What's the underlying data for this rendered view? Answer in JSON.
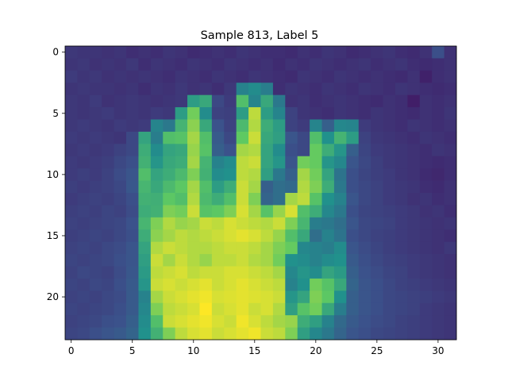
{
  "chart_data": {
    "type": "heatmap",
    "title": "Sample 813, Label 5",
    "xlabel": "",
    "ylabel": "",
    "colormap": "viridis",
    "grid": false,
    "legend": "none",
    "rows": 24,
    "cols": 32,
    "y_axis_direction": "top-to-bottom",
    "x_ticks": [
      0,
      5,
      10,
      15,
      20,
      25,
      30
    ],
    "y_ticks": [
      0,
      5,
      10,
      15,
      20
    ],
    "value_range": [
      0,
      1
    ],
    "values": [
      [
        0.17,
        0.16,
        0.16,
        0.15,
        0.16,
        0.14,
        0.15,
        0.14,
        0.16,
        0.15,
        0.13,
        0.14,
        0.15,
        0.14,
        0.16,
        0.15,
        0.14,
        0.14,
        0.13,
        0.15,
        0.14,
        0.16,
        0.15,
        0.13,
        0.14,
        0.15,
        0.16,
        0.14,
        0.13,
        0.15,
        0.24,
        0.15
      ],
      [
        0.16,
        0.17,
        0.15,
        0.16,
        0.15,
        0.17,
        0.14,
        0.16,
        0.15,
        0.14,
        0.16,
        0.15,
        0.14,
        0.16,
        0.15,
        0.14,
        0.15,
        0.13,
        0.15,
        0.14,
        0.16,
        0.15,
        0.14,
        0.15,
        0.16,
        0.14,
        0.15,
        0.16,
        0.14,
        0.13,
        0.14,
        0.15
      ],
      [
        0.18,
        0.16,
        0.17,
        0.15,
        0.16,
        0.15,
        0.16,
        0.15,
        0.14,
        0.16,
        0.15,
        0.14,
        0.16,
        0.15,
        0.14,
        0.16,
        0.15,
        0.14,
        0.13,
        0.16,
        0.15,
        0.14,
        0.16,
        0.15,
        0.14,
        0.15,
        0.14,
        0.13,
        0.15,
        0.1,
        0.14,
        0.15
      ],
      [
        0.16,
        0.17,
        0.16,
        0.16,
        0.15,
        0.16,
        0.14,
        0.16,
        0.15,
        0.17,
        0.15,
        0.16,
        0.14,
        0.17,
        0.44,
        0.48,
        0.42,
        0.14,
        0.16,
        0.15,
        0.14,
        0.16,
        0.15,
        0.14,
        0.16,
        0.15,
        0.14,
        0.16,
        0.15,
        0.14,
        0.13,
        0.14
      ],
      [
        0.17,
        0.16,
        0.18,
        0.15,
        0.16,
        0.17,
        0.16,
        0.15,
        0.16,
        0.17,
        0.55,
        0.6,
        0.22,
        0.18,
        0.7,
        0.45,
        0.6,
        0.4,
        0.15,
        0.16,
        0.14,
        0.15,
        0.16,
        0.15,
        0.14,
        0.13,
        0.15,
        0.14,
        0.09,
        0.15,
        0.14,
        0.15
      ],
      [
        0.17,
        0.16,
        0.17,
        0.18,
        0.16,
        0.17,
        0.16,
        0.18,
        0.17,
        0.55,
        0.78,
        0.48,
        0.2,
        0.19,
        0.55,
        0.9,
        0.55,
        0.45,
        0.2,
        0.16,
        0.15,
        0.14,
        0.16,
        0.15,
        0.14,
        0.16,
        0.15,
        0.14,
        0.13,
        0.15,
        0.14,
        0.16
      ],
      [
        0.17,
        0.18,
        0.17,
        0.16,
        0.18,
        0.17,
        0.18,
        0.45,
        0.4,
        0.65,
        0.82,
        0.6,
        0.25,
        0.2,
        0.68,
        0.88,
        0.62,
        0.55,
        0.2,
        0.18,
        0.45,
        0.3,
        0.46,
        0.45,
        0.18,
        0.16,
        0.15,
        0.14,
        0.16,
        0.15,
        0.14,
        0.15
      ],
      [
        0.18,
        0.17,
        0.18,
        0.17,
        0.16,
        0.22,
        0.58,
        0.42,
        0.7,
        0.72,
        0.86,
        0.7,
        0.28,
        0.22,
        0.75,
        0.92,
        0.6,
        0.56,
        0.26,
        0.22,
        0.7,
        0.5,
        0.65,
        0.55,
        0.2,
        0.17,
        0.16,
        0.15,
        0.14,
        0.16,
        0.15,
        0.14
      ],
      [
        0.17,
        0.18,
        0.17,
        0.18,
        0.2,
        0.22,
        0.62,
        0.48,
        0.58,
        0.6,
        0.84,
        0.72,
        0.3,
        0.25,
        0.86,
        0.88,
        0.58,
        0.48,
        0.24,
        0.22,
        0.76,
        0.62,
        0.52,
        0.3,
        0.21,
        0.18,
        0.17,
        0.16,
        0.15,
        0.14,
        0.16,
        0.15
      ],
      [
        0.18,
        0.17,
        0.18,
        0.19,
        0.22,
        0.24,
        0.64,
        0.52,
        0.6,
        0.62,
        0.86,
        0.65,
        0.44,
        0.48,
        0.9,
        0.92,
        0.58,
        0.52,
        0.26,
        0.78,
        0.76,
        0.52,
        0.46,
        0.26,
        0.22,
        0.19,
        0.17,
        0.16,
        0.15,
        0.14,
        0.13,
        0.14
      ],
      [
        0.18,
        0.19,
        0.18,
        0.2,
        0.23,
        0.26,
        0.7,
        0.58,
        0.62,
        0.68,
        0.8,
        0.64,
        0.48,
        0.5,
        0.9,
        0.88,
        0.56,
        0.4,
        0.3,
        0.86,
        0.78,
        0.58,
        0.38,
        0.24,
        0.21,
        0.19,
        0.18,
        0.16,
        0.15,
        0.13,
        0.12,
        0.14
      ],
      [
        0.19,
        0.18,
        0.19,
        0.2,
        0.22,
        0.27,
        0.66,
        0.6,
        0.68,
        0.74,
        0.86,
        0.7,
        0.55,
        0.62,
        0.92,
        0.86,
        0.3,
        0.36,
        0.34,
        0.88,
        0.8,
        0.62,
        0.4,
        0.24,
        0.22,
        0.2,
        0.18,
        0.17,
        0.16,
        0.14,
        0.13,
        0.15
      ],
      [
        0.18,
        0.19,
        0.2,
        0.19,
        0.21,
        0.24,
        0.64,
        0.63,
        0.74,
        0.7,
        0.88,
        0.68,
        0.62,
        0.7,
        0.92,
        0.8,
        0.32,
        0.36,
        0.86,
        0.9,
        0.72,
        0.5,
        0.44,
        0.26,
        0.22,
        0.2,
        0.18,
        0.17,
        0.15,
        0.16,
        0.14,
        0.15
      ],
      [
        0.19,
        0.2,
        0.19,
        0.21,
        0.2,
        0.23,
        0.62,
        0.64,
        0.8,
        0.78,
        0.92,
        0.72,
        0.74,
        0.8,
        0.94,
        0.86,
        0.72,
        0.84,
        0.94,
        0.7,
        0.62,
        0.46,
        0.4,
        0.24,
        0.21,
        0.2,
        0.19,
        0.18,
        0.17,
        0.15,
        0.16,
        0.14
      ],
      [
        0.2,
        0.19,
        0.2,
        0.21,
        0.22,
        0.25,
        0.66,
        0.8,
        0.88,
        0.84,
        0.86,
        0.92,
        0.9,
        0.94,
        0.92,
        0.9,
        0.88,
        0.92,
        0.8,
        0.66,
        0.42,
        0.4,
        0.36,
        0.26,
        0.22,
        0.21,
        0.2,
        0.18,
        0.17,
        0.16,
        0.15,
        0.16
      ],
      [
        0.19,
        0.2,
        0.21,
        0.2,
        0.22,
        0.24,
        0.62,
        0.82,
        0.86,
        0.9,
        0.88,
        0.9,
        0.92,
        0.94,
        0.96,
        0.94,
        0.9,
        0.84,
        0.7,
        0.6,
        0.36,
        0.44,
        0.38,
        0.24,
        0.22,
        0.2,
        0.19,
        0.18,
        0.17,
        0.16,
        0.15,
        0.14
      ],
      [
        0.2,
        0.21,
        0.2,
        0.22,
        0.23,
        0.26,
        0.58,
        0.88,
        0.92,
        0.9,
        0.88,
        0.88,
        0.9,
        0.92,
        0.92,
        0.9,
        0.86,
        0.8,
        0.76,
        0.46,
        0.44,
        0.42,
        0.48,
        0.26,
        0.23,
        0.21,
        0.19,
        0.18,
        0.17,
        0.16,
        0.15,
        0.17
      ],
      [
        0.21,
        0.2,
        0.21,
        0.22,
        0.24,
        0.26,
        0.56,
        0.92,
        0.86,
        0.92,
        0.88,
        0.84,
        0.9,
        0.9,
        0.92,
        0.88,
        0.86,
        0.78,
        0.5,
        0.48,
        0.44,
        0.48,
        0.5,
        0.28,
        0.24,
        0.22,
        0.2,
        0.19,
        0.18,
        0.17,
        0.16,
        0.15
      ],
      [
        0.2,
        0.22,
        0.21,
        0.2,
        0.23,
        0.27,
        0.54,
        0.9,
        0.92,
        0.94,
        0.9,
        0.92,
        0.92,
        0.94,
        0.94,
        0.92,
        0.9,
        0.86,
        0.46,
        0.52,
        0.48,
        0.58,
        0.54,
        0.3,
        0.25,
        0.23,
        0.21,
        0.2,
        0.18,
        0.17,
        0.16,
        0.15
      ],
      [
        0.21,
        0.2,
        0.22,
        0.21,
        0.24,
        0.28,
        0.52,
        0.92,
        0.94,
        0.92,
        0.94,
        0.96,
        0.92,
        0.94,
        0.96,
        0.94,
        0.92,
        0.9,
        0.44,
        0.5,
        0.78,
        0.72,
        0.6,
        0.32,
        0.26,
        0.24,
        0.22,
        0.2,
        0.19,
        0.18,
        0.17,
        0.16
      ],
      [
        0.2,
        0.21,
        0.2,
        0.22,
        0.23,
        0.28,
        0.44,
        0.86,
        0.92,
        0.94,
        0.96,
        0.98,
        0.94,
        0.95,
        0.96,
        0.95,
        0.94,
        0.92,
        0.52,
        0.58,
        0.8,
        0.74,
        0.5,
        0.3,
        0.26,
        0.24,
        0.22,
        0.21,
        0.2,
        0.19,
        0.18,
        0.17
      ],
      [
        0.21,
        0.2,
        0.21,
        0.22,
        0.24,
        0.28,
        0.46,
        0.8,
        0.9,
        0.92,
        0.94,
        1.0,
        0.92,
        0.94,
        0.96,
        0.92,
        0.94,
        0.88,
        0.56,
        0.72,
        0.78,
        0.6,
        0.42,
        0.3,
        0.26,
        0.24,
        0.22,
        0.21,
        0.2,
        0.18,
        0.17,
        0.16
      ],
      [
        0.2,
        0.21,
        0.22,
        0.24,
        0.25,
        0.3,
        0.48,
        0.7,
        0.92,
        0.94,
        0.96,
        0.98,
        0.94,
        0.92,
        0.98,
        0.94,
        0.9,
        0.86,
        0.84,
        0.62,
        0.56,
        0.44,
        0.34,
        0.28,
        0.25,
        0.23,
        0.22,
        0.2,
        0.19,
        0.18,
        0.17,
        0.16
      ],
      [
        0.21,
        0.22,
        0.24,
        0.26,
        0.28,
        0.32,
        0.5,
        0.64,
        0.8,
        0.9,
        0.94,
        0.96,
        0.92,
        0.94,
        0.96,
        0.98,
        0.92,
        0.9,
        0.8,
        0.56,
        0.46,
        0.4,
        0.32,
        0.26,
        0.24,
        0.22,
        0.21,
        0.2,
        0.19,
        0.18,
        0.17,
        0.16
      ]
    ]
  }
}
